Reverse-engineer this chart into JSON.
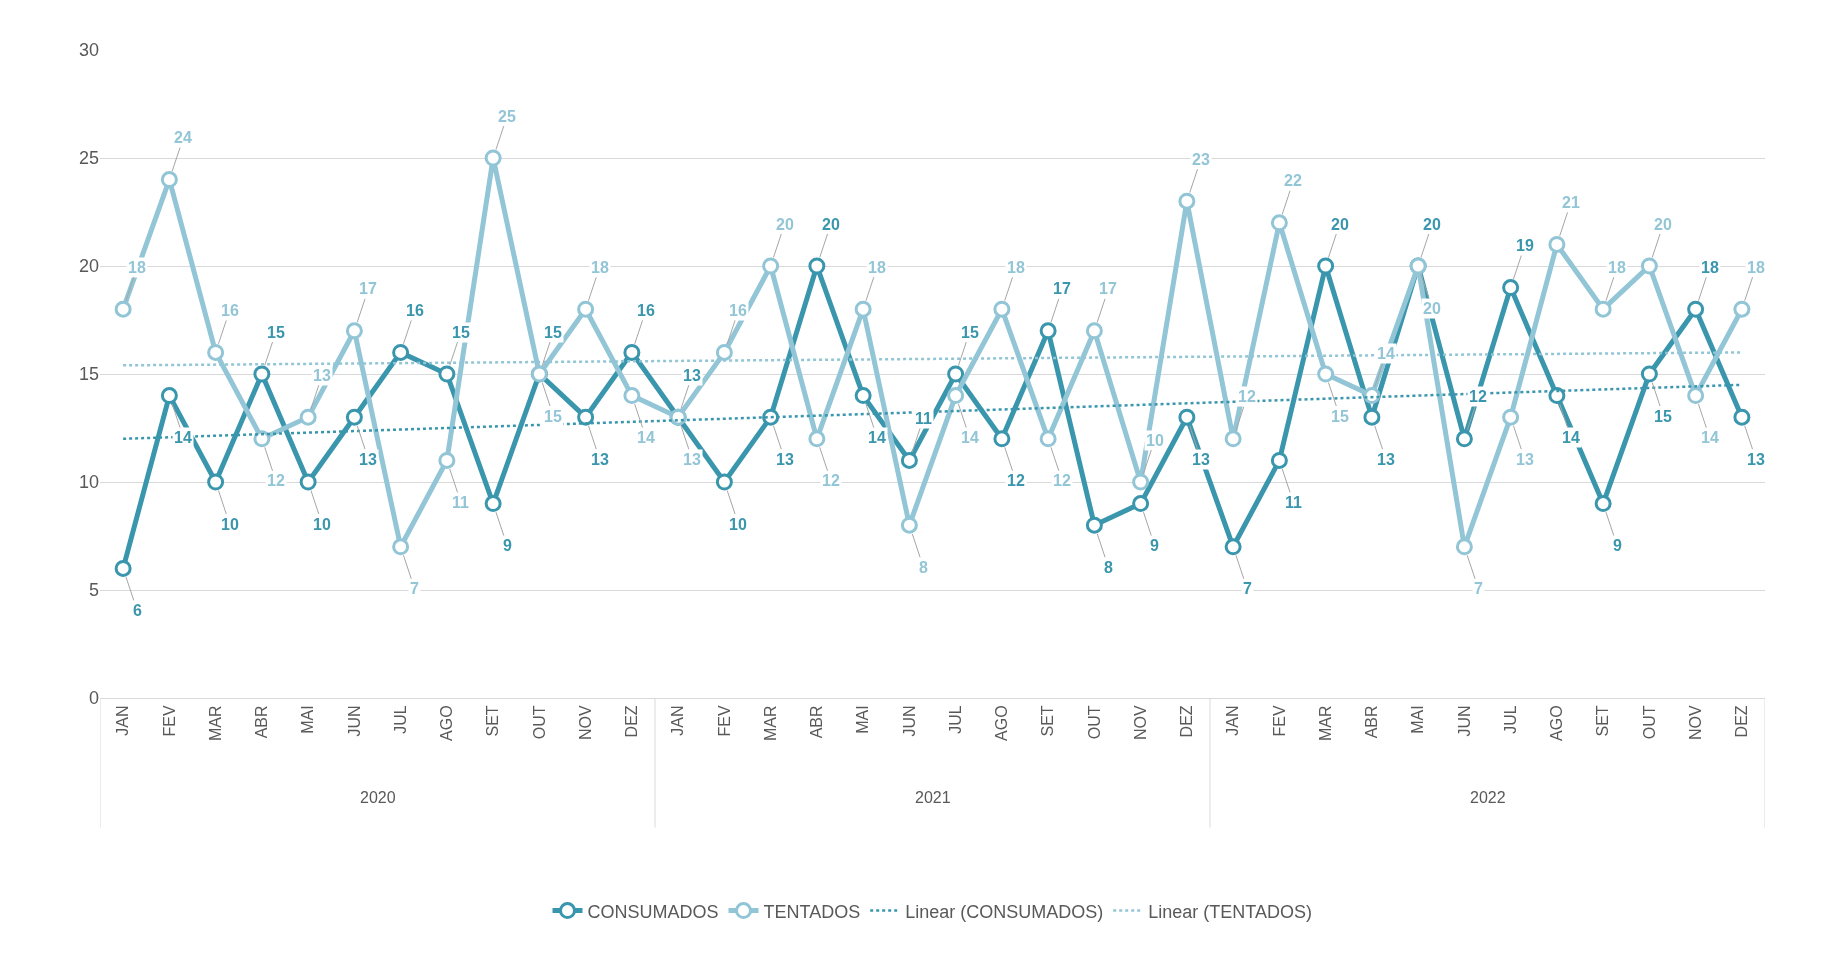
{
  "chart_data": {
    "type": "line",
    "categories": [
      "JAN",
      "FEV",
      "MAR",
      "ABR",
      "MAI",
      "JUN",
      "JUL",
      "AGO",
      "SET",
      "OUT",
      "NOV",
      "DEZ",
      "JAN",
      "FEV",
      "MAR",
      "ABR",
      "MAI",
      "JUN",
      "JUL",
      "AGO",
      "SET",
      "OUT",
      "NOV",
      "DEZ",
      "JAN",
      "FEV",
      "MAR",
      "ABR",
      "MAI",
      "JUN",
      "JUL",
      "AGO",
      "SET",
      "OUT",
      "NOV",
      "DEZ"
    ],
    "annotations": [
      "2020",
      "2021",
      "2022"
    ],
    "series": [
      {
        "name": "CONSUMADOS",
        "color": "#3a96ad",
        "marker": "circle",
        "data_labels": true,
        "values": [
          6,
          14,
          10,
          15,
          10,
          13,
          16,
          15,
          9,
          15,
          13,
          16,
          13,
          10,
          13,
          20,
          14,
          11,
          15,
          12,
          17,
          8,
          9,
          13,
          7,
          11,
          20,
          13,
          20,
          12,
          19,
          14,
          9,
          15,
          18,
          13
        ]
      },
      {
        "name": "TENTADOS",
        "color": "#92c5d6",
        "marker": "circle",
        "data_labels": true,
        "values": [
          18,
          24,
          16,
          12,
          13,
          17,
          7,
          11,
          25,
          15,
          18,
          14,
          13,
          16,
          20,
          12,
          18,
          8,
          14,
          18,
          12,
          17,
          10,
          23,
          12,
          22,
          15,
          14,
          20,
          7,
          13,
          21,
          18,
          20,
          14,
          18
        ]
      },
      {
        "name": "Linear (CONSUMADOS)",
        "color": "#3a96ad",
        "line_style": "dotted",
        "values": [
          12.0,
          null,
          null,
          null,
          null,
          null,
          null,
          null,
          null,
          null,
          null,
          null,
          null,
          null,
          null,
          null,
          null,
          null,
          null,
          null,
          null,
          null,
          null,
          null,
          null,
          null,
          null,
          null,
          null,
          null,
          null,
          null,
          null,
          null,
          null,
          14.5
        ]
      },
      {
        "name": "Linear (TENTADOS)",
        "color": "#92c5d6",
        "line_style": "dotted",
        "values": [
          15.4,
          null,
          null,
          null,
          null,
          null,
          null,
          null,
          null,
          null,
          null,
          null,
          null,
          null,
          null,
          null,
          null,
          null,
          null,
          null,
          null,
          null,
          null,
          null,
          null,
          null,
          null,
          null,
          null,
          null,
          null,
          null,
          null,
          null,
          null,
          16.0
        ]
      }
    ],
    "ylim": [
      0,
      30
    ],
    "yticks": [
      0,
      5,
      10,
      15,
      20,
      25,
      30
    ],
    "grid": "y",
    "legend": "bottom"
  }
}
